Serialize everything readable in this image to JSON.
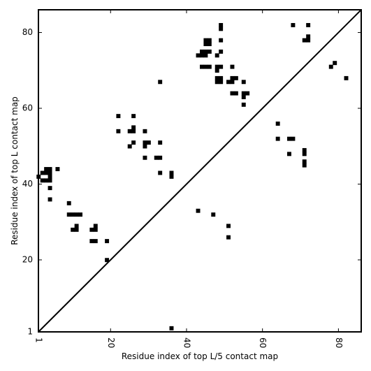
{
  "chart_data": {
    "type": "heatmap",
    "xlabel": "Residue index of top L/5 contact map",
    "ylabel": "Residue index of top L contact map",
    "xlim": [
      1,
      86
    ],
    "ylim": [
      1,
      86
    ],
    "x_ticks": [
      1,
      20,
      40,
      60,
      80
    ],
    "y_ticks": [
      1,
      20,
      40,
      60,
      80
    ],
    "x_tick_labels": [
      "1",
      "20",
      "40",
      "60",
      "80"
    ],
    "y_tick_labels": [
      "1",
      "20",
      "40",
      "60",
      "80"
    ],
    "x_tick_label_rotation": "vertical",
    "diagonal": true,
    "grid": false,
    "cell_color": "#000000",
    "background_color": "#ffffff",
    "upper_triangle_contacts": [
      [
        68,
        82
      ],
      [
        72,
        82
      ],
      [
        49,
        81
      ],
      [
        49,
        82
      ],
      [
        45,
        77
      ],
      [
        46,
        77
      ],
      [
        45,
        78
      ],
      [
        46,
        78
      ],
      [
        72,
        78
      ],
      [
        72,
        79
      ],
      [
        71,
        78
      ],
      [
        49,
        78
      ],
      [
        44,
        75
      ],
      [
        45,
        75
      ],
      [
        46,
        75
      ],
      [
        49,
        75
      ],
      [
        43,
        74
      ],
      [
        44,
        74
      ],
      [
        45,
        74
      ],
      [
        48,
        74
      ],
      [
        79,
        72
      ],
      [
        78,
        71
      ],
      [
        44,
        71
      ],
      [
        45,
        71
      ],
      [
        46,
        71
      ],
      [
        48,
        71
      ],
      [
        49,
        71
      ],
      [
        52,
        71
      ],
      [
        48,
        70
      ],
      [
        82,
        68
      ],
      [
        48,
        68
      ],
      [
        49,
        68
      ],
      [
        52,
        68
      ],
      [
        53,
        68
      ],
      [
        33,
        67
      ],
      [
        48,
        67
      ],
      [
        49,
        67
      ],
      [
        51,
        67
      ],
      [
        52,
        67
      ],
      [
        55,
        67
      ],
      [
        52,
        64
      ],
      [
        53,
        64
      ],
      [
        55,
        64
      ],
      [
        56,
        64
      ],
      [
        55,
        63
      ],
      [
        55,
        61
      ],
      [
        22,
        58
      ],
      [
        26,
        58
      ],
      [
        64,
        56
      ],
      [
        26,
        55
      ],
      [
        22,
        54
      ],
      [
        25,
        54
      ],
      [
        26,
        54
      ],
      [
        29,
        54
      ],
      [
        64,
        52
      ],
      [
        67,
        52
      ],
      [
        68,
        52
      ],
      [
        26,
        51
      ],
      [
        29,
        51
      ],
      [
        30,
        51
      ],
      [
        33,
        51
      ],
      [
        25,
        50
      ],
      [
        29,
        50
      ],
      [
        71,
        49
      ],
      [
        71,
        48
      ],
      [
        67,
        48
      ],
      [
        29,
        47
      ],
      [
        32,
        47
      ],
      [
        33,
        47
      ],
      [
        71,
        46
      ],
      [
        71,
        45
      ],
      [
        33,
        43
      ],
      [
        36,
        43
      ],
      [
        36,
        42
      ]
    ],
    "lower_triangle_contacts": [
      [
        3,
        44
      ],
      [
        4,
        44
      ],
      [
        6,
        44
      ],
      [
        2,
        43
      ],
      [
        3,
        43
      ],
      [
        4,
        43
      ],
      [
        4,
        42
      ],
      [
        1,
        42
      ],
      [
        4,
        41
      ],
      [
        2,
        41
      ],
      [
        3,
        41
      ],
      [
        4,
        39
      ],
      [
        4,
        36
      ],
      [
        9,
        35
      ],
      [
        9,
        32
      ],
      [
        10,
        32
      ],
      [
        11,
        32
      ],
      [
        12,
        32
      ],
      [
        11,
        29
      ],
      [
        16,
        29
      ],
      [
        10,
        28
      ],
      [
        11,
        28
      ],
      [
        15,
        28
      ],
      [
        16,
        28
      ],
      [
        15,
        25
      ],
      [
        16,
        25
      ],
      [
        19,
        25
      ],
      [
        19,
        20
      ],
      [
        43,
        33
      ],
      [
        47,
        32
      ],
      [
        51,
        29
      ],
      [
        51,
        26
      ],
      [
        36,
        2
      ]
    ]
  }
}
